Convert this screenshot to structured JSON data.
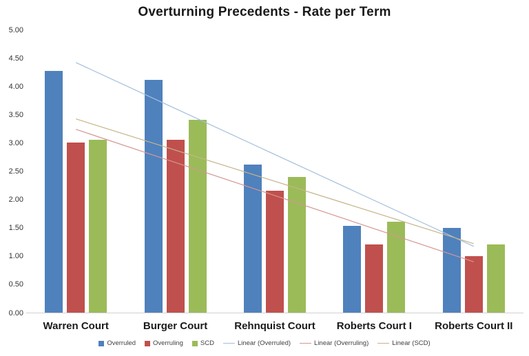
{
  "chart_data": {
    "type": "bar",
    "title": "Overturning Precedents - Rate per Term",
    "categories": [
      "Warren Court",
      "Burger Court",
      "Rehnquist Court",
      "Roberts Court I",
      "Roberts Court II"
    ],
    "series": [
      {
        "name": "Overruled",
        "color": "#4F81BD",
        "values": [
          4.27,
          4.11,
          2.62,
          1.53,
          1.5
        ]
      },
      {
        "name": "Overruling",
        "color": "#C0504D",
        "values": [
          3.0,
          3.05,
          2.15,
          1.2,
          1.0
        ]
      },
      {
        "name": "SCD",
        "color": "#9BBB59",
        "values": [
          3.05,
          3.41,
          2.4,
          1.6,
          1.2
        ]
      }
    ],
    "trendlines": [
      {
        "name": "Linear (Overruled)",
        "series": "Overruled",
        "color": "#A3BEDC"
      },
      {
        "name": "Linear (Overruling)",
        "series": "Overruling",
        "color": "#D59593"
      },
      {
        "name": "Linear (SCD)",
        "series": "SCD",
        "color": "#C4B489"
      }
    ],
    "y_axis": {
      "min": 0,
      "max": 5,
      "step": 0.5,
      "tick_labels": [
        "5.00",
        "4.50",
        "4.00",
        "3.50",
        "3.00",
        "2.50",
        "2.00",
        "1.50",
        "1.00",
        "0.50",
        "0.00"
      ]
    },
    "legend_position": "bottom",
    "gridlines": false
  }
}
